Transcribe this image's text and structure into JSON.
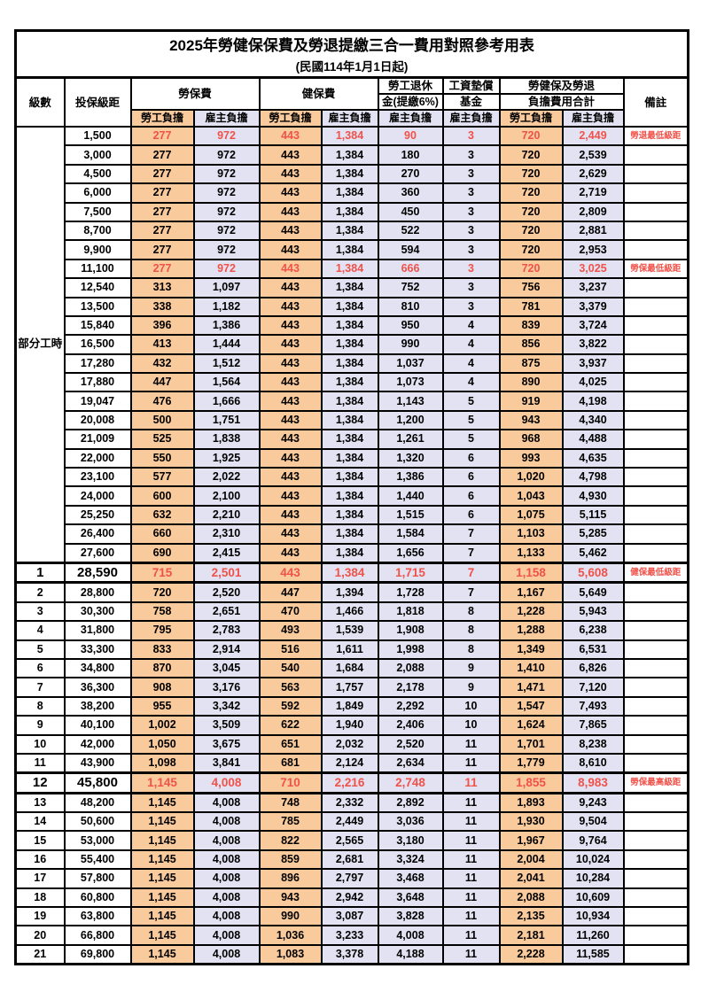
{
  "title": "2025年勞健保保費及勞退提繳三合一費用對照參考用表",
  "subtitle": "(民國114年1月1日起)",
  "colors": {
    "employee_bg": "#F9CA9C",
    "employer_bg": "#E2E2F2",
    "highlight_text": "#F0524A",
    "border": "#000000"
  },
  "table": {
    "header": {
      "level": "級數",
      "bracket": "投保級距",
      "labor": "勞保費",
      "health": "健保費",
      "pension1": "勞工退休",
      "pension2": "金(提繳6%)",
      "wage1": "工資墊償",
      "wage2": "基金",
      "total1": "勞健保及勞退",
      "total2": "負擔費用合計",
      "remark": "備註",
      "employee": "勞工負擔",
      "employer": "雇主負擔"
    },
    "part_time_label": "部分工時",
    "rows": [
      {
        "lv": "",
        "br": "1,500",
        "ls": "277",
        "le": "972",
        "hs": "443",
        "he": "1,384",
        "pe": "90",
        "we": "3",
        "ts": "720",
        "te": "2,449",
        "rm": "勞退最低級距",
        "red": true,
        "emph": false
      },
      {
        "lv": "",
        "br": "3,000",
        "ls": "277",
        "le": "972",
        "hs": "443",
        "he": "1,384",
        "pe": "180",
        "we": "3",
        "ts": "720",
        "te": "2,539",
        "rm": "",
        "red": false,
        "emph": false
      },
      {
        "lv": "",
        "br": "4,500",
        "ls": "277",
        "le": "972",
        "hs": "443",
        "he": "1,384",
        "pe": "270",
        "we": "3",
        "ts": "720",
        "te": "2,629",
        "rm": "",
        "red": false,
        "emph": false
      },
      {
        "lv": "",
        "br": "6,000",
        "ls": "277",
        "le": "972",
        "hs": "443",
        "he": "1,384",
        "pe": "360",
        "we": "3",
        "ts": "720",
        "te": "2,719",
        "rm": "",
        "red": false,
        "emph": false
      },
      {
        "lv": "",
        "br": "7,500",
        "ls": "277",
        "le": "972",
        "hs": "443",
        "he": "1,384",
        "pe": "450",
        "we": "3",
        "ts": "720",
        "te": "2,809",
        "rm": "",
        "red": false,
        "emph": false
      },
      {
        "lv": "",
        "br": "8,700",
        "ls": "277",
        "le": "972",
        "hs": "443",
        "he": "1,384",
        "pe": "522",
        "we": "3",
        "ts": "720",
        "te": "2,881",
        "rm": "",
        "red": false,
        "emph": false
      },
      {
        "lv": "",
        "br": "9,900",
        "ls": "277",
        "le": "972",
        "hs": "443",
        "he": "1,384",
        "pe": "594",
        "we": "3",
        "ts": "720",
        "te": "2,953",
        "rm": "",
        "red": false,
        "emph": false
      },
      {
        "lv": "",
        "br": "11,100",
        "ls": "277",
        "le": "972",
        "hs": "443",
        "he": "1,384",
        "pe": "666",
        "we": "3",
        "ts": "720",
        "te": "3,025",
        "rm": "勞保最低級距",
        "red": true,
        "emph": false
      },
      {
        "lv": "",
        "br": "12,540",
        "ls": "313",
        "le": "1,097",
        "hs": "443",
        "he": "1,384",
        "pe": "752",
        "we": "3",
        "ts": "756",
        "te": "3,237",
        "rm": "",
        "red": false,
        "emph": false
      },
      {
        "lv": "",
        "br": "13,500",
        "ls": "338",
        "le": "1,182",
        "hs": "443",
        "he": "1,384",
        "pe": "810",
        "we": "3",
        "ts": "781",
        "te": "3,379",
        "rm": "",
        "red": false,
        "emph": false
      },
      {
        "lv": "",
        "br": "15,840",
        "ls": "396",
        "le": "1,386",
        "hs": "443",
        "he": "1,384",
        "pe": "950",
        "we": "4",
        "ts": "839",
        "te": "3,724",
        "rm": "",
        "red": false,
        "emph": false
      },
      {
        "lv": "",
        "br": "16,500",
        "ls": "413",
        "le": "1,444",
        "hs": "443",
        "he": "1,384",
        "pe": "990",
        "we": "4",
        "ts": "856",
        "te": "3,822",
        "rm": "",
        "red": false,
        "emph": false
      },
      {
        "lv": "",
        "br": "17,280",
        "ls": "432",
        "le": "1,512",
        "hs": "443",
        "he": "1,384",
        "pe": "1,037",
        "we": "4",
        "ts": "875",
        "te": "3,937",
        "rm": "",
        "red": false,
        "emph": false
      },
      {
        "lv": "",
        "br": "17,880",
        "ls": "447",
        "le": "1,564",
        "hs": "443",
        "he": "1,384",
        "pe": "1,073",
        "we": "4",
        "ts": "890",
        "te": "4,025",
        "rm": "",
        "red": false,
        "emph": false
      },
      {
        "lv": "",
        "br": "19,047",
        "ls": "476",
        "le": "1,666",
        "hs": "443",
        "he": "1,384",
        "pe": "1,143",
        "we": "5",
        "ts": "919",
        "te": "4,198",
        "rm": "",
        "red": false,
        "emph": false
      },
      {
        "lv": "",
        "br": "20,008",
        "ls": "500",
        "le": "1,751",
        "hs": "443",
        "he": "1,384",
        "pe": "1,200",
        "we": "5",
        "ts": "943",
        "te": "4,340",
        "rm": "",
        "red": false,
        "emph": false
      },
      {
        "lv": "",
        "br": "21,009",
        "ls": "525",
        "le": "1,838",
        "hs": "443",
        "he": "1,384",
        "pe": "1,261",
        "we": "5",
        "ts": "968",
        "te": "4,488",
        "rm": "",
        "red": false,
        "emph": false
      },
      {
        "lv": "",
        "br": "22,000",
        "ls": "550",
        "le": "1,925",
        "hs": "443",
        "he": "1,384",
        "pe": "1,320",
        "we": "6",
        "ts": "993",
        "te": "4,635",
        "rm": "",
        "red": false,
        "emph": false
      },
      {
        "lv": "",
        "br": "23,100",
        "ls": "577",
        "le": "2,022",
        "hs": "443",
        "he": "1,384",
        "pe": "1,386",
        "we": "6",
        "ts": "1,020",
        "te": "4,798",
        "rm": "",
        "red": false,
        "emph": false
      },
      {
        "lv": "",
        "br": "24,000",
        "ls": "600",
        "le": "2,100",
        "hs": "443",
        "he": "1,384",
        "pe": "1,440",
        "we": "6",
        "ts": "1,043",
        "te": "4,930",
        "rm": "",
        "red": false,
        "emph": false
      },
      {
        "lv": "",
        "br": "25,250",
        "ls": "632",
        "le": "2,210",
        "hs": "443",
        "he": "1,384",
        "pe": "1,515",
        "we": "6",
        "ts": "1,075",
        "te": "5,115",
        "rm": "",
        "red": false,
        "emph": false
      },
      {
        "lv": "",
        "br": "26,400",
        "ls": "660",
        "le": "2,310",
        "hs": "443",
        "he": "1,384",
        "pe": "1,584",
        "we": "7",
        "ts": "1,103",
        "te": "5,285",
        "rm": "",
        "red": false,
        "emph": false
      },
      {
        "lv": "",
        "br": "27,600",
        "ls": "690",
        "le": "2,415",
        "hs": "443",
        "he": "1,384",
        "pe": "1,656",
        "we": "7",
        "ts": "1,133",
        "te": "5,462",
        "rm": "",
        "red": false,
        "emph": false
      },
      {
        "lv": "1",
        "br": "28,590",
        "ls": "715",
        "le": "2,501",
        "hs": "443",
        "he": "1,384",
        "pe": "1,715",
        "we": "7",
        "ts": "1,158",
        "te": "5,608",
        "rm": "健保最低級距",
        "red": true,
        "emph": true
      },
      {
        "lv": "2",
        "br": "28,800",
        "ls": "720",
        "le": "2,520",
        "hs": "447",
        "he": "1,394",
        "pe": "1,728",
        "we": "7",
        "ts": "1,167",
        "te": "5,649",
        "rm": "",
        "red": false,
        "emph": false
      },
      {
        "lv": "3",
        "br": "30,300",
        "ls": "758",
        "le": "2,651",
        "hs": "470",
        "he": "1,466",
        "pe": "1,818",
        "we": "8",
        "ts": "1,228",
        "te": "5,943",
        "rm": "",
        "red": false,
        "emph": false
      },
      {
        "lv": "4",
        "br": "31,800",
        "ls": "795",
        "le": "2,783",
        "hs": "493",
        "he": "1,539",
        "pe": "1,908",
        "we": "8",
        "ts": "1,288",
        "te": "6,238",
        "rm": "",
        "red": false,
        "emph": false
      },
      {
        "lv": "5",
        "br": "33,300",
        "ls": "833",
        "le": "2,914",
        "hs": "516",
        "he": "1,611",
        "pe": "1,998",
        "we": "8",
        "ts": "1,349",
        "te": "6,531",
        "rm": "",
        "red": false,
        "emph": false
      },
      {
        "lv": "6",
        "br": "34,800",
        "ls": "870",
        "le": "3,045",
        "hs": "540",
        "he": "1,684",
        "pe": "2,088",
        "we": "9",
        "ts": "1,410",
        "te": "6,826",
        "rm": "",
        "red": false,
        "emph": false
      },
      {
        "lv": "7",
        "br": "36,300",
        "ls": "908",
        "le": "3,176",
        "hs": "563",
        "he": "1,757",
        "pe": "2,178",
        "we": "9",
        "ts": "1,471",
        "te": "7,120",
        "rm": "",
        "red": false,
        "emph": false
      },
      {
        "lv": "8",
        "br": "38,200",
        "ls": "955",
        "le": "3,342",
        "hs": "592",
        "he": "1,849",
        "pe": "2,292",
        "we": "10",
        "ts": "1,547",
        "te": "7,493",
        "rm": "",
        "red": false,
        "emph": false
      },
      {
        "lv": "9",
        "br": "40,100",
        "ls": "1,002",
        "le": "3,509",
        "hs": "622",
        "he": "1,940",
        "pe": "2,406",
        "we": "10",
        "ts": "1,624",
        "te": "7,865",
        "rm": "",
        "red": false,
        "emph": false
      },
      {
        "lv": "10",
        "br": "42,000",
        "ls": "1,050",
        "le": "3,675",
        "hs": "651",
        "he": "2,032",
        "pe": "2,520",
        "we": "11",
        "ts": "1,701",
        "te": "8,238",
        "rm": "",
        "red": false,
        "emph": false
      },
      {
        "lv": "11",
        "br": "43,900",
        "ls": "1,098",
        "le": "3,841",
        "hs": "681",
        "he": "2,124",
        "pe": "2,634",
        "we": "11",
        "ts": "1,779",
        "te": "8,610",
        "rm": "",
        "red": false,
        "emph": false
      },
      {
        "lv": "12",
        "br": "45,800",
        "ls": "1,145",
        "le": "4,008",
        "hs": "710",
        "he": "2,216",
        "pe": "2,748",
        "we": "11",
        "ts": "1,855",
        "te": "8,983",
        "rm": "勞保最高級距",
        "red": true,
        "emph": true
      },
      {
        "lv": "13",
        "br": "48,200",
        "ls": "1,145",
        "le": "4,008",
        "hs": "748",
        "he": "2,332",
        "pe": "2,892",
        "we": "11",
        "ts": "1,893",
        "te": "9,243",
        "rm": "",
        "red": false,
        "emph": false
      },
      {
        "lv": "14",
        "br": "50,600",
        "ls": "1,145",
        "le": "4,008",
        "hs": "785",
        "he": "2,449",
        "pe": "3,036",
        "we": "11",
        "ts": "1,930",
        "te": "9,504",
        "rm": "",
        "red": false,
        "emph": false
      },
      {
        "lv": "15",
        "br": "53,000",
        "ls": "1,145",
        "le": "4,008",
        "hs": "822",
        "he": "2,565",
        "pe": "3,180",
        "we": "11",
        "ts": "1,967",
        "te": "9,764",
        "rm": "",
        "red": false,
        "emph": false
      },
      {
        "lv": "16",
        "br": "55,400",
        "ls": "1,145",
        "le": "4,008",
        "hs": "859",
        "he": "2,681",
        "pe": "3,324",
        "we": "11",
        "ts": "2,004",
        "te": "10,024",
        "rm": "",
        "red": false,
        "emph": false
      },
      {
        "lv": "17",
        "br": "57,800",
        "ls": "1,145",
        "le": "4,008",
        "hs": "896",
        "he": "2,797",
        "pe": "3,468",
        "we": "11",
        "ts": "2,041",
        "te": "10,284",
        "rm": "",
        "red": false,
        "emph": false
      },
      {
        "lv": "18",
        "br": "60,800",
        "ls": "1,145",
        "le": "4,008",
        "hs": "943",
        "he": "2,942",
        "pe": "3,648",
        "we": "11",
        "ts": "2,088",
        "te": "10,609",
        "rm": "",
        "red": false,
        "emph": false
      },
      {
        "lv": "19",
        "br": "63,800",
        "ls": "1,145",
        "le": "4,008",
        "hs": "990",
        "he": "3,087",
        "pe": "3,828",
        "we": "11",
        "ts": "2,135",
        "te": "10,934",
        "rm": "",
        "red": false,
        "emph": false
      },
      {
        "lv": "20",
        "br": "66,800",
        "ls": "1,145",
        "le": "4,008",
        "hs": "1,036",
        "he": "3,233",
        "pe": "4,008",
        "we": "11",
        "ts": "2,181",
        "te": "11,260",
        "rm": "",
        "red": false,
        "emph": false
      },
      {
        "lv": "21",
        "br": "69,800",
        "ls": "1,145",
        "le": "4,008",
        "hs": "1,083",
        "he": "3,378",
        "pe": "4,188",
        "we": "11",
        "ts": "2,228",
        "te": "11,585",
        "rm": "",
        "red": false,
        "emph": false
      }
    ]
  }
}
